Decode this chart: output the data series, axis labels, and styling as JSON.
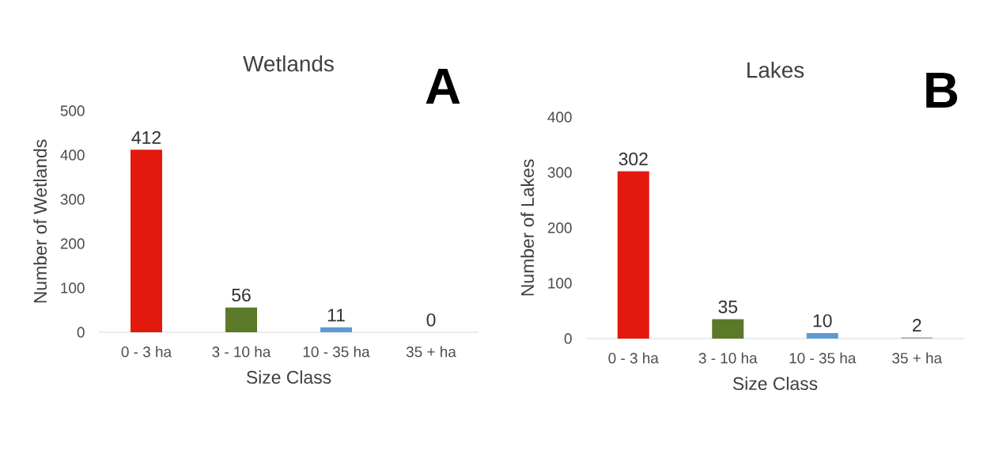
{
  "chart_data": [
    {
      "type": "bar",
      "title": "Wetlands",
      "xlabel": "Size Class",
      "ylabel": "Number of Wetlands",
      "categories": [
        "0 - 3 ha",
        "3 - 10 ha",
        "10 - 35 ha",
        "35 + ha"
      ],
      "values": [
        412,
        56,
        11,
        0
      ],
      "colors": [
        "#e3190d",
        "#5a7a2a",
        "#5b9bd5",
        "#a5a5a5"
      ],
      "ylim": [
        0,
        500
      ],
      "yticks": [
        0,
        100,
        200,
        300,
        400,
        500
      ],
      "data_labels": true,
      "annotations": [
        "A"
      ]
    },
    {
      "type": "bar",
      "title": "Lakes",
      "xlabel": "Size Class",
      "ylabel": "Number of Lakes",
      "categories": [
        "0 - 3 ha",
        "3 - 10 ha",
        "10 - 35 ha",
        "35 + ha"
      ],
      "values": [
        302,
        35,
        10,
        2
      ],
      "colors": [
        "#e3190d",
        "#5a7a2a",
        "#5b9bd5",
        "#a5a5a5"
      ],
      "ylim": [
        0,
        400
      ],
      "yticks": [
        0,
        100,
        200,
        300,
        400
      ],
      "data_labels": true,
      "annotations": [
        "B"
      ]
    }
  ]
}
